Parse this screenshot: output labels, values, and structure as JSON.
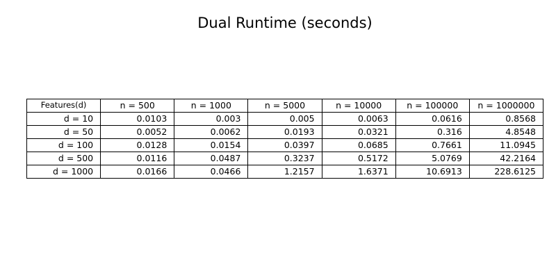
{
  "chart_data": {
    "type": "table",
    "title": "Dual Runtime (seconds)",
    "row_header_label": "Features(d)",
    "columns": [
      "n = 500",
      "n = 1000",
      "n = 5000",
      "n = 10000",
      "n = 100000",
      "n = 1000000"
    ],
    "rows": [
      {
        "label": "d = 10",
        "values": [
          "0.0103",
          "0.003",
          "0.005",
          "0.0063",
          "0.0616",
          "0.8568"
        ]
      },
      {
        "label": "d = 50",
        "values": [
          "0.0052",
          "0.0062",
          "0.0193",
          "0.0321",
          "0.316",
          "4.8548"
        ]
      },
      {
        "label": "d = 100",
        "values": [
          "0.0128",
          "0.0154",
          "0.0397",
          "0.0685",
          "0.7661",
          "11.0945"
        ]
      },
      {
        "label": "d = 500",
        "values": [
          "0.0116",
          "0.0487",
          "0.3237",
          "0.5172",
          "5.0769",
          "42.2164"
        ]
      },
      {
        "label": "d = 1000",
        "values": [
          "0.0166",
          "0.0466",
          "1.2157",
          "1.6371",
          "10.6913",
          "228.6125"
        ]
      }
    ]
  }
}
